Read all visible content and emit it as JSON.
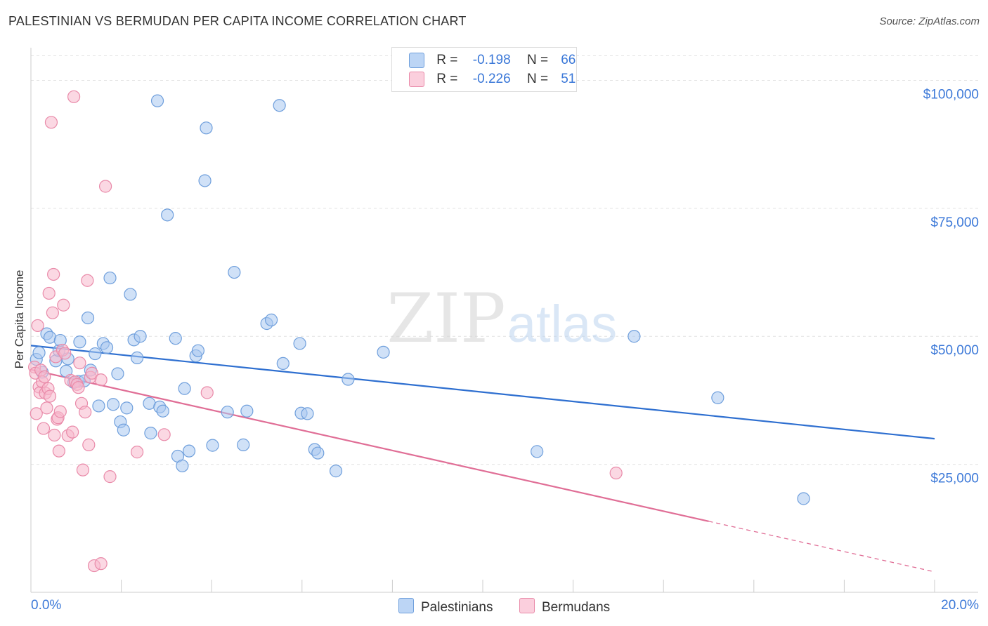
{
  "header": {
    "title": "PALESTINIAN VS BERMUDAN PER CAPITA INCOME CORRELATION CHART",
    "source": "Source: ZipAtlas.com"
  },
  "watermark": {
    "zip": "ZIP",
    "atlas": "atlas"
  },
  "legend": {
    "rows": [
      {
        "r_label": "R =",
        "r_value": "-0.198",
        "n_label": "N =",
        "n_value": "66"
      },
      {
        "r_label": "R =",
        "r_value": "-0.226",
        "n_label": "N =",
        "n_value": "51"
      }
    ]
  },
  "bottom_legend": {
    "series1": "Palestinians",
    "series2": "Bermudans"
  },
  "colors": {
    "palestinians_fill": "#a9c8f0",
    "palestinians_stroke": "#6f9fdc",
    "palestinians_line": "#2e6fd0",
    "bermudans_fill": "#f7b8cc",
    "bermudans_stroke": "#e98aa9",
    "bermudans_line": "#e06e96",
    "tick_label": "#3b78d8",
    "grid": "#e2e2e2"
  },
  "chart_data": {
    "type": "scatter",
    "title": "PALESTINIAN VS BERMUDAN PER CAPITA INCOME CORRELATION CHART",
    "xlabel": "",
    "ylabel": "Per Capita Income",
    "xlim": [
      0,
      20
    ],
    "ylim": [
      0,
      105000
    ],
    "x_tick_labels": [
      "0.0%",
      "20.0%"
    ],
    "y_ticks": [
      25000,
      50000,
      75000,
      100000
    ],
    "y_tick_labels": [
      "$25,000",
      "$50,000",
      "$75,000",
      "$100,000"
    ],
    "series": [
      {
        "name": "Palestinians",
        "R": -0.198,
        "N": 66,
        "trend": {
          "x": [
            0,
            20
          ],
          "y": [
            48200,
            30000
          ],
          "dashed_from": null
        },
        "points": [
          [
            0.12,
            45500
          ],
          [
            0.18,
            46800
          ],
          [
            0.25,
            43000
          ],
          [
            0.35,
            50500
          ],
          [
            0.42,
            49800
          ],
          [
            0.55,
            45200
          ],
          [
            0.62,
            47200
          ],
          [
            0.65,
            49200
          ],
          [
            0.78,
            43200
          ],
          [
            0.82,
            45600
          ],
          [
            0.95,
            41000
          ],
          [
            1.05,
            41200
          ],
          [
            1.08,
            48900
          ],
          [
            1.18,
            41300
          ],
          [
            1.26,
            53600
          ],
          [
            1.32,
            43400
          ],
          [
            1.42,
            46600
          ],
          [
            1.5,
            36400
          ],
          [
            1.6,
            48600
          ],
          [
            1.68,
            47800
          ],
          [
            1.75,
            61400
          ],
          [
            1.82,
            36700
          ],
          [
            1.92,
            42700
          ],
          [
            1.98,
            33300
          ],
          [
            2.05,
            31700
          ],
          [
            2.12,
            36000
          ],
          [
            2.2,
            58200
          ],
          [
            2.28,
            49300
          ],
          [
            2.35,
            45800
          ],
          [
            2.42,
            50000
          ],
          [
            2.62,
            36900
          ],
          [
            2.65,
            31100
          ],
          [
            2.8,
            96000
          ],
          [
            2.85,
            36200
          ],
          [
            2.92,
            35400
          ],
          [
            3.02,
            73700
          ],
          [
            3.2,
            49600
          ],
          [
            3.25,
            26600
          ],
          [
            3.35,
            24700
          ],
          [
            3.4,
            39800
          ],
          [
            3.5,
            27600
          ],
          [
            3.65,
            46200
          ],
          [
            3.7,
            47200
          ],
          [
            3.85,
            80400
          ],
          [
            3.88,
            90700
          ],
          [
            4.02,
            28700
          ],
          [
            4.35,
            35200
          ],
          [
            4.5,
            62500
          ],
          [
            4.7,
            28800
          ],
          [
            4.78,
            35400
          ],
          [
            5.22,
            52500
          ],
          [
            5.32,
            53200
          ],
          [
            5.5,
            95100
          ],
          [
            5.58,
            44700
          ],
          [
            5.95,
            48600
          ],
          [
            5.98,
            35000
          ],
          [
            6.12,
            34900
          ],
          [
            6.28,
            27900
          ],
          [
            6.35,
            27200
          ],
          [
            6.75,
            23700
          ],
          [
            7.02,
            41600
          ],
          [
            7.8,
            46900
          ],
          [
            11.2,
            27500
          ],
          [
            13.35,
            50000
          ],
          [
            15.2,
            38000
          ],
          [
            17.1,
            18300
          ]
        ]
      },
      {
        "name": "Bermudans",
        "R": -0.226,
        "N": 51,
        "trend": {
          "x": [
            0,
            20
          ],
          "y": [
            43500,
            4000
          ],
          "dashed_from": 15
        },
        "points": [
          [
            0.08,
            44000
          ],
          [
            0.1,
            42800
          ],
          [
            0.12,
            34900
          ],
          [
            0.15,
            52100
          ],
          [
            0.18,
            40100
          ],
          [
            0.2,
            39000
          ],
          [
            0.22,
            43400
          ],
          [
            0.25,
            41100
          ],
          [
            0.28,
            32000
          ],
          [
            0.3,
            42100
          ],
          [
            0.32,
            38900
          ],
          [
            0.35,
            36000
          ],
          [
            0.38,
            39800
          ],
          [
            0.4,
            58400
          ],
          [
            0.42,
            38300
          ],
          [
            0.45,
            91800
          ],
          [
            0.48,
            54600
          ],
          [
            0.5,
            62100
          ],
          [
            0.52,
            30700
          ],
          [
            0.55,
            46000
          ],
          [
            0.58,
            33800
          ],
          [
            0.6,
            34100
          ],
          [
            0.62,
            27600
          ],
          [
            0.65,
            35300
          ],
          [
            0.7,
            47300
          ],
          [
            0.72,
            56100
          ],
          [
            0.75,
            46700
          ],
          [
            0.82,
            30600
          ],
          [
            0.88,
            41400
          ],
          [
            0.92,
            31300
          ],
          [
            0.95,
            96800
          ],
          [
            0.98,
            41100
          ],
          [
            1.02,
            40600
          ],
          [
            1.05,
            40000
          ],
          [
            1.08,
            44800
          ],
          [
            1.12,
            36900
          ],
          [
            1.15,
            23900
          ],
          [
            1.2,
            35200
          ],
          [
            1.25,
            60900
          ],
          [
            1.28,
            28800
          ],
          [
            1.32,
            42000
          ],
          [
            1.35,
            42800
          ],
          [
            1.4,
            5200
          ],
          [
            1.55,
            41500
          ],
          [
            1.55,
            5600
          ],
          [
            1.65,
            79300
          ],
          [
            1.75,
            22600
          ],
          [
            2.35,
            27400
          ],
          [
            2.95,
            30800
          ],
          [
            3.9,
            39000
          ],
          [
            12.95,
            23300
          ]
        ]
      }
    ]
  }
}
